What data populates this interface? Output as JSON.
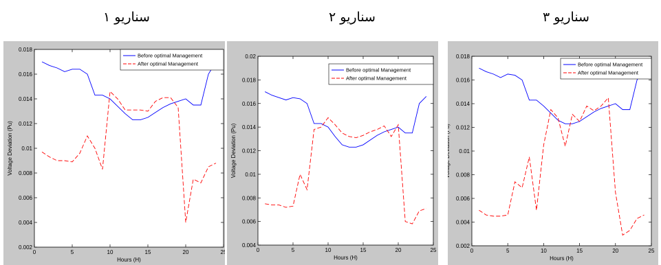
{
  "titles": [
    "سناریو ۱",
    "سناریو ۲",
    "سناریو ۳"
  ],
  "colors": {
    "before": "#0000ff",
    "after": "#ff0000",
    "frame_bg": "#c8c8c8",
    "plot_bg": "#ffffff"
  },
  "chart_data": [
    {
      "type": "line",
      "title": "سناریو ۱",
      "xlabel": "Hours (H)",
      "ylabel": "Voltage Deviation (Pu)",
      "xlim": [
        0,
        25
      ],
      "ylim": [
        0.002,
        0.018
      ],
      "xticks": [
        "0",
        "5",
        "10",
        "15",
        "20",
        "25"
      ],
      "yticks": [
        "0.002",
        "0.004",
        "0.006",
        "0.008",
        "0.01",
        "0.012",
        "0.014",
        "0.016",
        "0.018"
      ],
      "ytick_values": [
        0.002,
        0.004,
        0.006,
        0.008,
        0.01,
        0.012,
        0.014,
        0.016,
        0.018
      ],
      "xtick_values": [
        0,
        5,
        10,
        15,
        20,
        25
      ],
      "grid": false,
      "legend_position": "top-right",
      "x": [
        1,
        2,
        3,
        4,
        5,
        6,
        7,
        8,
        9,
        10,
        11,
        12,
        13,
        14,
        15,
        16,
        17,
        18,
        19,
        20,
        21,
        22,
        23,
        24
      ],
      "series": [
        {
          "name": "Before optimal Management",
          "style": "solid",
          "values": [
            0.017,
            0.0167,
            0.0165,
            0.0162,
            0.0164,
            0.0164,
            0.016,
            0.0143,
            0.0143,
            0.014,
            0.0134,
            0.0128,
            0.0123,
            0.0123,
            0.0125,
            0.0129,
            0.0133,
            0.0136,
            0.0138,
            0.014,
            0.0135,
            0.0135,
            0.016,
            0.017
          ]
        },
        {
          "name": "After optimal Management",
          "style": "dashed",
          "values": [
            0.0097,
            0.0093,
            0.009,
            0.009,
            0.0089,
            0.0096,
            0.011,
            0.01,
            0.0083,
            0.0146,
            0.014,
            0.0131,
            0.0131,
            0.0131,
            0.013,
            0.0138,
            0.0141,
            0.0141,
            0.0133,
            0.004,
            0.0075,
            0.0072,
            0.0085,
            0.0088
          ]
        }
      ]
    },
    {
      "type": "line",
      "title": "سناریو ۲",
      "xlabel": "Hours (H)",
      "ylabel": "Voltage Deviation (Pu)",
      "xlim": [
        0,
        25
      ],
      "ylim": [
        0.004,
        0.02
      ],
      "xticks": [
        "0",
        "5",
        "10",
        "15",
        "20",
        "25"
      ],
      "yticks": [
        "0.004",
        "0.006",
        "0.008",
        "0.01",
        "0.012",
        "0.014",
        "0.016",
        "0.018",
        "0.02"
      ],
      "ytick_values": [
        0.004,
        0.006,
        0.008,
        0.01,
        0.012,
        0.014,
        0.016,
        0.018,
        0.02
      ],
      "xtick_values": [
        0,
        5,
        10,
        15,
        20,
        25
      ],
      "grid": false,
      "legend_position": "top-right",
      "x": [
        1,
        2,
        3,
        4,
        5,
        6,
        7,
        8,
        9,
        10,
        11,
        12,
        13,
        14,
        15,
        16,
        17,
        18,
        19,
        20,
        21,
        22,
        23,
        24
      ],
      "series": [
        {
          "name": "Before optimal Management",
          "style": "solid",
          "values": [
            0.017,
            0.0167,
            0.0165,
            0.0163,
            0.0165,
            0.0164,
            0.016,
            0.0143,
            0.0143,
            0.014,
            0.0132,
            0.0125,
            0.0123,
            0.0123,
            0.0125,
            0.0129,
            0.0133,
            0.0136,
            0.0138,
            0.014,
            0.0135,
            0.0135,
            0.016,
            0.0166
          ]
        },
        {
          "name": "After optimal Management",
          "style": "dashed",
          "values": [
            0.0075,
            0.0074,
            0.0074,
            0.0072,
            0.0073,
            0.01,
            0.0087,
            0.0138,
            0.014,
            0.0148,
            0.0142,
            0.0135,
            0.0132,
            0.0131,
            0.0133,
            0.0136,
            0.0138,
            0.0141,
            0.0132,
            0.0142,
            0.006,
            0.0058,
            0.0069,
            0.0071
          ]
        }
      ]
    },
    {
      "type": "line",
      "title": "سناریو ۳",
      "xlabel": "Hours (H)",
      "ylabel": "Voltage Deviation (Pu)",
      "xlim": [
        0,
        25
      ],
      "ylim": [
        0.002,
        0.018
      ],
      "xticks": [
        "0",
        "5",
        "10",
        "15",
        "20",
        "25"
      ],
      "yticks": [
        "0.002",
        "0.004",
        "0.006",
        "0.008",
        "0.01",
        "0.012",
        "0.014",
        "0.016",
        "0.018"
      ],
      "ytick_values": [
        0.002,
        0.004,
        0.006,
        0.008,
        0.01,
        0.012,
        0.014,
        0.016,
        0.018
      ],
      "xtick_values": [
        0,
        5,
        10,
        15,
        20,
        25
      ],
      "grid": false,
      "legend_position": "top-right",
      "x": [
        1,
        2,
        3,
        4,
        5,
        6,
        7,
        8,
        9,
        10,
        11,
        12,
        13,
        14,
        15,
        16,
        17,
        18,
        19,
        20,
        21,
        22,
        23,
        24
      ],
      "series": [
        {
          "name": "Before optimal Management",
          "style": "solid",
          "values": [
            0.017,
            0.0167,
            0.0165,
            0.0162,
            0.0165,
            0.0164,
            0.016,
            0.0143,
            0.0143,
            0.0138,
            0.0132,
            0.0126,
            0.0123,
            0.0123,
            0.0125,
            0.0129,
            0.0133,
            0.0136,
            0.0138,
            0.014,
            0.0135,
            0.0135,
            0.016,
            0.017
          ]
        },
        {
          "name": "After optimal Management",
          "style": "dashed",
          "values": [
            0.005,
            0.0046,
            0.0045,
            0.0045,
            0.0046,
            0.0074,
            0.0069,
            0.0095,
            0.005,
            0.0105,
            0.0135,
            0.0128,
            0.0104,
            0.0131,
            0.0125,
            0.0138,
            0.0134,
            0.0138,
            0.0145,
            0.0065,
            0.0029,
            0.0033,
            0.0043,
            0.0046
          ]
        }
      ]
    }
  ]
}
